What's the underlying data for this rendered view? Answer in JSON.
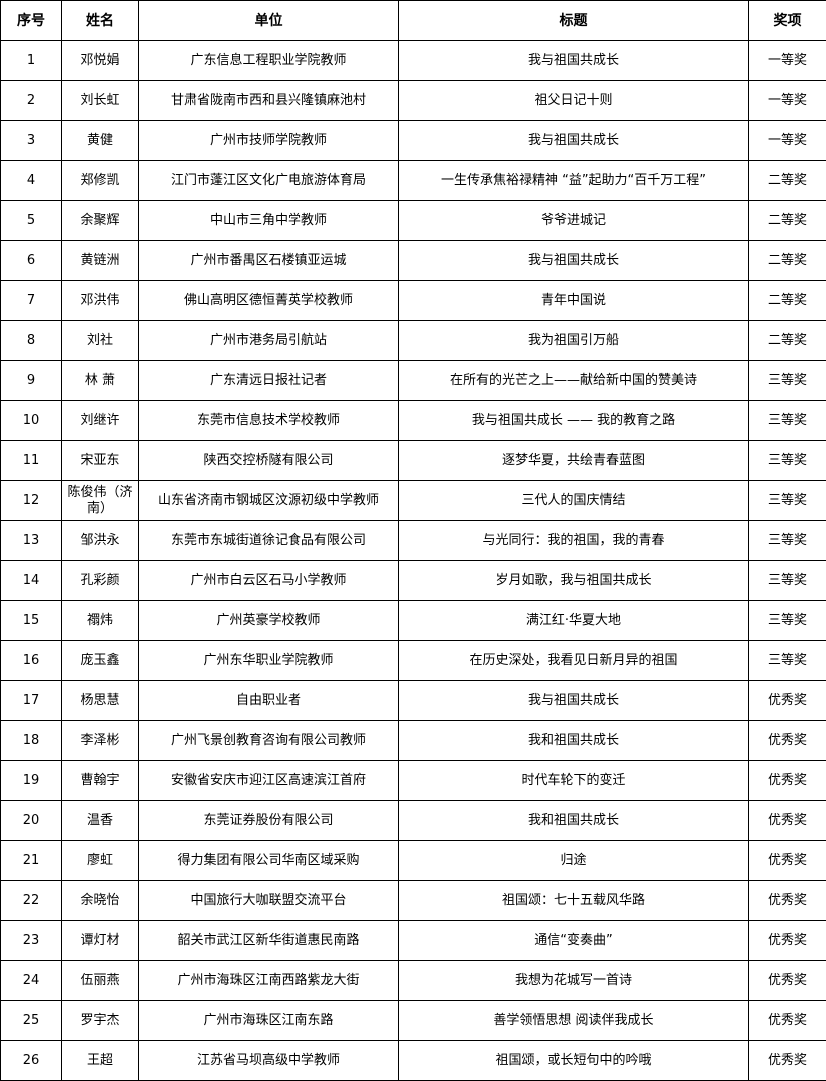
{
  "headers": [
    "序号",
    "姓名",
    "单位",
    "标题",
    "奖项"
  ],
  "rows": [
    [
      "1",
      "邓悦娟",
      "广东信息工程职业学院教师",
      "我与祖国共成长",
      "一等奖"
    ],
    [
      "2",
      "刘长虹",
      "甘肃省陇南市西和县兴隆镇麻池村",
      "祖父日记十则",
      "一等奖"
    ],
    [
      "3",
      "黄健",
      "广州市技师学院教师",
      "我与祖国共成长",
      "一等奖"
    ],
    [
      "4",
      "郑修凯",
      "江门市蓬江区文化广电旅游体育局",
      "一生传承焦裕禄精神 “益”起助力“百千万工程”",
      "二等奖"
    ],
    [
      "5",
      "余聚辉",
      "中山市三角中学教师",
      "爷爷进城记",
      "二等奖"
    ],
    [
      "6",
      "黄链洲",
      "广州市番禺区石楼镇亚运城",
      "我与祖国共成长",
      "二等奖"
    ],
    [
      "7",
      "邓洪伟",
      "佛山高明区德恒菁英学校教师",
      "青年中国说",
      "二等奖"
    ],
    [
      "8",
      "刘社",
      "广州市港务局引航站",
      "我为祖国引万船",
      "二等奖"
    ],
    [
      "9",
      "林 萧",
      "广东清远日报社记者",
      "在所有的光芒之上——献给新中国的赞美诗",
      "三等奖"
    ],
    [
      "10",
      "刘继许",
      "东莞市信息技术学校教师",
      "我与祖国共成长 —— 我的教育之路",
      "三等奖"
    ],
    [
      "11",
      "宋亚东",
      "陕西交控桥隧有限公司",
      "逐梦华夏，共绘青春蓝图",
      "三等奖"
    ],
    [
      "12",
      "陈俊伟（济南）",
      "山东省济南市钢城区汶源初级中学教师",
      "三代人的国庆情结",
      "三等奖"
    ],
    [
      "13",
      "邹洪永",
      "东莞市东城街道徐记食品有限公司",
      "与光同行：我的祖国，我的青春",
      "三等奖"
    ],
    [
      "14",
      "孔彩颜",
      "广州市白云区石马小学教师",
      "岁月如歌，我与祖国共成长",
      "三等奖"
    ],
    [
      "15",
      "禤炜",
      "广州英豪学校教师",
      "满江红·华夏大地",
      "三等奖"
    ],
    [
      "16",
      "庞玉鑫",
      "广州东华职业学院教师",
      "在历史深处，我看见日新月异的祖国",
      "三等奖"
    ],
    [
      "17",
      "杨思慧",
      "自由职业者",
      "我与祖国共成长",
      "优秀奖"
    ],
    [
      "18",
      "李泽彬",
      "广州飞景创教育咨询有限公司教师",
      "我和祖国共成长",
      "优秀奖"
    ],
    [
      "19",
      "曹翰宇",
      "安徽省安庆市迎江区高速滨江首府",
      "时代车轮下的变迁",
      "优秀奖"
    ],
    [
      "20",
      "温香",
      "东莞证券股份有限公司",
      "我和祖国共成长",
      "优秀奖"
    ],
    [
      "21",
      "廖虹",
      "得力集团有限公司华南区域采购",
      "归途",
      "优秀奖"
    ],
    [
      "22",
      "余晓怡",
      "中国旅行大咖联盟交流平台",
      "祖国颂：七十五载风华路",
      "优秀奖"
    ],
    [
      "23",
      "谭灯材",
      "韶关市武江区新华街道惠民南路",
      "通信“变奏曲”",
      "优秀奖"
    ],
    [
      "24",
      "伍丽燕",
      "广州市海珠区江南西路紫龙大街",
      "我想为花城写一首诗",
      "优秀奖"
    ],
    [
      "25",
      "罗宇杰",
      "广州市海珠区江南东路",
      "善学领悟思想 阅读伴我成长",
      "优秀奖"
    ],
    [
      "26",
      "王超",
      "江苏省马坝高级中学教师",
      "祖国颂，或长短句中的吟哦",
      "优秀奖"
    ]
  ]
}
